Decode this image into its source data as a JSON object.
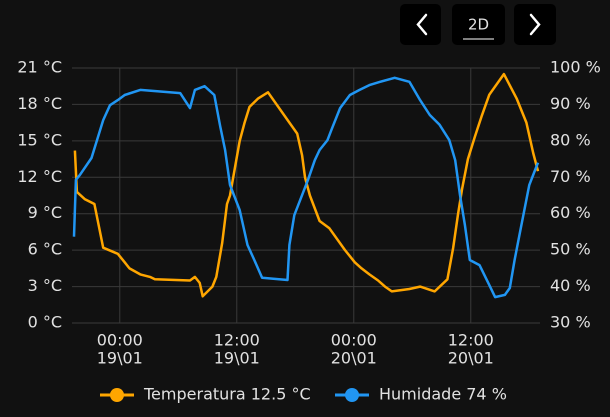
{
  "toolbar": {
    "range_label": "2D"
  },
  "chart_data": {
    "type": "line",
    "xlim": [
      -4.9,
      43.1
    ],
    "xticks": [
      {
        "value": 0,
        "label": "00:00",
        "date": "19\\01"
      },
      {
        "value": 12,
        "label": "12:00",
        "date": "19\\01"
      },
      {
        "value": 24,
        "label": "00:00",
        "date": "20\\01"
      },
      {
        "value": 36,
        "label": "12:00",
        "date": "20\\01"
      }
    ],
    "ylim": [
      0,
      21
    ],
    "yticks": [
      {
        "value": 0,
        "label": "0 °C"
      },
      {
        "value": 3,
        "label": "3 °C"
      },
      {
        "value": 6,
        "label": "6 °C"
      },
      {
        "value": 9,
        "label": "9 °C"
      },
      {
        "value": 12,
        "label": "12 °C"
      },
      {
        "value": 15,
        "label": "15 °C"
      },
      {
        "value": 18,
        "label": "18 °C"
      },
      {
        "value": 21,
        "label": "21 °C"
      }
    ],
    "y2lim": [
      30,
      100
    ],
    "y2ticks": [
      {
        "value": 30,
        "label": "30 %"
      },
      {
        "value": 40,
        "label": "40 %"
      },
      {
        "value": 50,
        "label": "50 %"
      },
      {
        "value": 60,
        "label": "60 %"
      },
      {
        "value": 70,
        "label": "70 %"
      },
      {
        "value": 80,
        "label": "80 %"
      },
      {
        "value": 90,
        "label": "90 %"
      },
      {
        "value": 100,
        "label": "100 %"
      }
    ],
    "grid": true,
    "legend": "bottom",
    "series": [
      {
        "name": "Temperatura 12.5 °C",
        "color": "#ffa600",
        "axis": "y",
        "x": [
          -4.6,
          -4.4,
          -3.6,
          -2.6,
          -1.7,
          -0.2,
          0.5,
          1.0,
          2.1,
          3.1,
          3.6,
          7.2,
          7.7,
          8.2,
          8.5,
          9.5,
          9.9,
          10.5,
          11.0,
          11.3,
          12.3,
          12.8,
          13.3,
          14.2,
          15.2,
          17.4,
          18.2,
          18.7,
          19.0,
          19.5,
          20.5,
          21.5,
          23.1,
          24.1,
          24.8,
          25.6,
          26.5,
          27.2,
          27.9,
          29.7,
          30.8,
          32.3,
          33.6,
          34.2,
          34.7,
          35.1,
          35.7,
          36.4,
          37.1,
          37.9,
          39.4,
          40.7,
          41.7,
          42.4,
          42.9
        ],
        "values": [
          14.2,
          10.8,
          10.2,
          9.8,
          6.2,
          5.7,
          5.0,
          4.5,
          4.0,
          3.8,
          3.6,
          3.5,
          3.8,
          3.3,
          2.2,
          3.0,
          3.8,
          6.6,
          9.8,
          10.5,
          15.0,
          16.5,
          17.8,
          18.5,
          19.0,
          16.5,
          15.6,
          13.8,
          12.0,
          10.5,
          8.4,
          7.8,
          6.0,
          5.0,
          4.5,
          4.0,
          3.5,
          3.0,
          2.6,
          2.8,
          3.0,
          2.6,
          3.6,
          6.2,
          9.0,
          11.0,
          13.5,
          15.3,
          17.0,
          18.8,
          20.5,
          18.5,
          16.5,
          14.0,
          12.5
        ]
      },
      {
        "name": "Humidade 74 %",
        "color": "#2196f3",
        "axis": "y2",
        "x": [
          -4.7,
          -4.5,
          -4.1,
          -2.9,
          -1.7,
          -1.0,
          -0.2,
          0.5,
          2.1,
          6.2,
          7.2,
          7.7,
          8.7,
          9.7,
          10.3,
          10.8,
          11.3,
          12.3,
          13.1,
          13.8,
          14.6,
          17.2,
          17.4,
          17.9,
          18.7,
          19.3,
          20.0,
          20.5,
          21.3,
          21.7,
          22.6,
          23.6,
          24.6,
          25.6,
          26.7,
          28.2,
          29.7,
          30.8,
          31.8,
          32.8,
          33.8,
          34.4,
          34.9,
          35.4,
          35.9,
          36.9,
          37.9,
          38.5,
          39.5,
          40.0,
          40.5,
          41.0,
          42.0,
          42.6,
          42.9
        ],
        "values": [
          53.7,
          69.3,
          70.6,
          75.3,
          85.7,
          89.8,
          91.2,
          92.6,
          94,
          93.1,
          89,
          94,
          95,
          92.6,
          84,
          77.5,
          67.9,
          61,
          51.4,
          47.3,
          42.4,
          41.8,
          51.4,
          59.6,
          65.1,
          69.3,
          74.7,
          77.5,
          80.2,
          83,
          89,
          92.6,
          94,
          95.3,
          96.2,
          97.3,
          96.2,
          91.2,
          87.1,
          84.4,
          80.2,
          74.7,
          65.1,
          56.9,
          47.3,
          45.9,
          40.4,
          37.1,
          37.7,
          39.6,
          47.3,
          54.2,
          67.9,
          72,
          74
        ]
      }
    ]
  }
}
